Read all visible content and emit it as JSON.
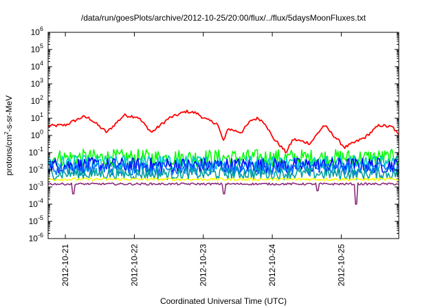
{
  "chart_data": {
    "type": "line",
    "title": "/data/run/goesPlots/archive/2012-10-25/20:00/flux/../flux/5daysMoonFluxes.txt",
    "xlabel": "Coordinated Universal Time (UTC)",
    "ylabel": {
      "prefix": "protons/cm",
      "sup": "2",
      "suffix": "-s-sr-MeV"
    },
    "yscale": "log",
    "ylim_exp": [
      -6,
      6
    ],
    "ytick_base": "10",
    "yticks_exp": [
      -6,
      -5,
      -4,
      -3,
      -2,
      -1,
      0,
      1,
      2,
      3,
      4,
      5,
      6
    ],
    "xlim": [
      "2012-10-20 18:00",
      "2012-10-25 20:00"
    ],
    "xticks": [
      {
        "label": "2012-10-21",
        "day": 21
      },
      {
        "label": "2012-10-22",
        "day": 22
      },
      {
        "label": "2012-10-23",
        "day": 23
      },
      {
        "label": "2012-10-24",
        "day": 24
      },
      {
        "label": "2012-10-25",
        "day": 25
      }
    ],
    "grid": false,
    "legend": "none",
    "series": [
      {
        "color": "#ff0000",
        "day_offsets": [
          0.0,
          0.25,
          0.5,
          0.6,
          0.85,
          1.1,
          1.3,
          1.5,
          1.75,
          2.0,
          2.15,
          2.3,
          2.45,
          2.55,
          2.6,
          2.8,
          2.95,
          3.05,
          3.15,
          3.25,
          3.35,
          3.45,
          3.55,
          3.8,
          4.0,
          4.3,
          4.6,
          4.8,
          5.0,
          5.08
        ],
        "values": [
          3.5,
          4.0,
          12.0,
          10.0,
          1.5,
          15.0,
          12.0,
          1.5,
          10.0,
          25.0,
          20.0,
          8.0,
          5.0,
          0.4,
          2.5,
          1.5,
          8.0,
          10.0,
          5.0,
          0.8,
          0.3,
          0.1,
          0.6,
          0.35,
          4.0,
          0.2,
          0.8,
          4.0,
          3.0,
          1.0
        ]
      },
      {
        "color": "#00ff00",
        "level": 0.05,
        "spread": 0.5
      },
      {
        "color": "#00c8c8",
        "level": 0.025,
        "spread": 0.45
      },
      {
        "color": "#0000ff",
        "level": 0.018,
        "spread": 0.45
      },
      {
        "color": "#0070ff",
        "level": 0.012,
        "spread": 0.4
      },
      {
        "color": "#00a0a0",
        "level": 0.006,
        "spread": 0.35
      },
      {
        "color": "#ffff00",
        "level": 0.0028,
        "spread": 0.08
      },
      {
        "color": "#8b2b7a",
        "level": 0.0015,
        "spread": 0.06,
        "dips": [
          {
            "day": 2.55,
            "value": 0.0004
          },
          {
            "day": 3.9,
            "value": 0.0006
          },
          {
            "day": 4.47,
            "value": 0.0001
          },
          {
            "day": 0.37,
            "value": 0.0004
          }
        ]
      }
    ]
  }
}
